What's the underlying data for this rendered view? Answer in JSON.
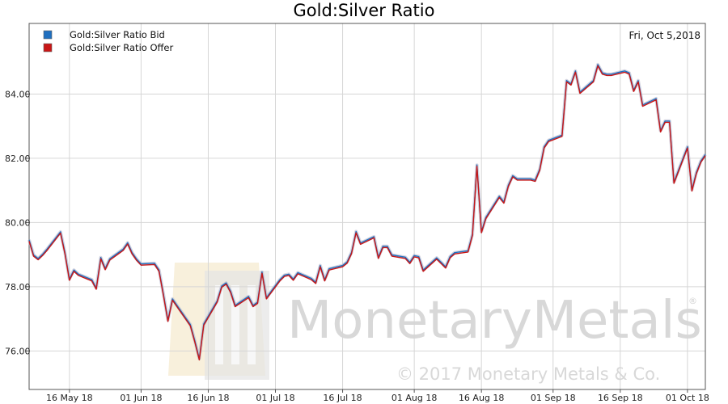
{
  "chart_data": {
    "type": "line",
    "title": "Gold:Silver Ratio",
    "date_label": "Fri, Oct 5,2018",
    "xlabel": "",
    "ylabel": "",
    "x_range": [
      "2018-05-07",
      "2018-10-05"
    ],
    "ylim": [
      74.8,
      86.2
    ],
    "y_ticks": [
      "76.00",
      "78.00",
      "80.00",
      "82.00",
      "84.00"
    ],
    "x_ticks": [
      {
        "date": "2018-05-16",
        "label": "16 May 18"
      },
      {
        "date": "2018-06-01",
        "label": "01 Jun 18"
      },
      {
        "date": "2018-06-16",
        "label": "16 Jun 18"
      },
      {
        "date": "2018-07-01",
        "label": "01 Jul 18"
      },
      {
        "date": "2018-07-16",
        "label": "16 Jul 18"
      },
      {
        "date": "2018-08-01",
        "label": "01 Aug 18"
      },
      {
        "date": "2018-08-16",
        "label": "16 Aug 18"
      },
      {
        "date": "2018-09-01",
        "label": "01 Sep 18"
      },
      {
        "date": "2018-09-16",
        "label": "16 Sep 18"
      },
      {
        "date": "2018-10-01",
        "label": "01 Oct 18"
      }
    ],
    "grid": true,
    "legend_position": "top-left",
    "series": [
      {
        "name": "Gold:Silver Ratio Bid",
        "color": "#1f6fbf",
        "points": [
          [
            "2018-05-07",
            79.42
          ],
          [
            "2018-05-08",
            78.95
          ],
          [
            "2018-05-09",
            78.84
          ],
          [
            "2018-05-10",
            78.97
          ],
          [
            "2018-05-11",
            79.13
          ],
          [
            "2018-05-14",
            79.67
          ],
          [
            "2018-05-15",
            79.02
          ],
          [
            "2018-05-16",
            78.2
          ],
          [
            "2018-05-17",
            78.48
          ],
          [
            "2018-05-18",
            78.35
          ],
          [
            "2018-05-21",
            78.18
          ],
          [
            "2018-05-22",
            77.92
          ],
          [
            "2018-05-23",
            78.87
          ],
          [
            "2018-05-24",
            78.53
          ],
          [
            "2018-05-25",
            78.83
          ],
          [
            "2018-05-28",
            79.13
          ],
          [
            "2018-05-29",
            79.33
          ],
          [
            "2018-05-30",
            79.02
          ],
          [
            "2018-05-31",
            78.82
          ],
          [
            "2018-06-01",
            78.67
          ],
          [
            "2018-06-04",
            78.69
          ],
          [
            "2018-06-05",
            78.48
          ],
          [
            "2018-06-06",
            77.72
          ],
          [
            "2018-06-07",
            76.92
          ],
          [
            "2018-06-08",
            77.58
          ],
          [
            "2018-06-11",
            76.98
          ],
          [
            "2018-06-12",
            76.78
          ],
          [
            "2018-06-13",
            76.28
          ],
          [
            "2018-06-14",
            75.72
          ],
          [
            "2018-06-15",
            76.8
          ],
          [
            "2018-06-18",
            77.52
          ],
          [
            "2018-06-19",
            77.98
          ],
          [
            "2018-06-20",
            78.08
          ],
          [
            "2018-06-21",
            77.82
          ],
          [
            "2018-06-22",
            77.38
          ],
          [
            "2018-06-25",
            77.66
          ],
          [
            "2018-06-26",
            77.38
          ],
          [
            "2018-06-27",
            77.48
          ],
          [
            "2018-06-28",
            78.42
          ],
          [
            "2018-06-29",
            77.62
          ],
          [
            "2018-07-02",
            78.18
          ],
          [
            "2018-07-03",
            78.32
          ],
          [
            "2018-07-04",
            78.35
          ],
          [
            "2018-07-05",
            78.2
          ],
          [
            "2018-07-06",
            78.4
          ],
          [
            "2018-07-09",
            78.22
          ],
          [
            "2018-07-10",
            78.1
          ],
          [
            "2018-07-11",
            78.62
          ],
          [
            "2018-07-12",
            78.18
          ],
          [
            "2018-07-13",
            78.52
          ],
          [
            "2018-07-16",
            78.62
          ],
          [
            "2018-07-17",
            78.73
          ],
          [
            "2018-07-18",
            79.03
          ],
          [
            "2018-07-19",
            79.68
          ],
          [
            "2018-07-20",
            79.32
          ],
          [
            "2018-07-23",
            79.52
          ],
          [
            "2018-07-24",
            78.88
          ],
          [
            "2018-07-25",
            79.22
          ],
          [
            "2018-07-26",
            79.22
          ],
          [
            "2018-07-27",
            78.95
          ],
          [
            "2018-07-30",
            78.88
          ],
          [
            "2018-07-31",
            78.72
          ],
          [
            "2018-08-01",
            78.93
          ],
          [
            "2018-08-02",
            78.9
          ],
          [
            "2018-08-03",
            78.48
          ],
          [
            "2018-08-06",
            78.86
          ],
          [
            "2018-08-07",
            78.72
          ],
          [
            "2018-08-08",
            78.58
          ],
          [
            "2018-08-09",
            78.9
          ],
          [
            "2018-08-10",
            79.02
          ],
          [
            "2018-08-13",
            79.08
          ],
          [
            "2018-08-14",
            79.6
          ],
          [
            "2018-08-15",
            81.75
          ],
          [
            "2018-08-16",
            79.68
          ],
          [
            "2018-08-17",
            80.12
          ],
          [
            "2018-08-20",
            80.78
          ],
          [
            "2018-08-21",
            80.6
          ],
          [
            "2018-08-22",
            81.12
          ],
          [
            "2018-08-23",
            81.42
          ],
          [
            "2018-08-24",
            81.32
          ],
          [
            "2018-08-27",
            81.32
          ],
          [
            "2018-08-28",
            81.28
          ],
          [
            "2018-08-29",
            81.62
          ],
          [
            "2018-08-30",
            82.32
          ],
          [
            "2018-08-31",
            82.52
          ],
          [
            "2018-09-03",
            82.68
          ],
          [
            "2018-09-04",
            84.38
          ],
          [
            "2018-09-05",
            84.28
          ],
          [
            "2018-09-06",
            84.68
          ],
          [
            "2018-09-07",
            84.02
          ],
          [
            "2018-09-10",
            84.38
          ],
          [
            "2018-09-11",
            84.88
          ],
          [
            "2018-09-12",
            84.62
          ],
          [
            "2018-09-13",
            84.58
          ],
          [
            "2018-09-14",
            84.58
          ],
          [
            "2018-09-17",
            84.68
          ],
          [
            "2018-09-18",
            84.62
          ],
          [
            "2018-09-19",
            84.08
          ],
          [
            "2018-09-20",
            84.38
          ],
          [
            "2018-09-21",
            83.62
          ],
          [
            "2018-09-24",
            83.82
          ],
          [
            "2018-09-25",
            82.82
          ],
          [
            "2018-09-26",
            83.12
          ],
          [
            "2018-09-27",
            83.12
          ],
          [
            "2018-09-28",
            81.22
          ],
          [
            "2018-10-01",
            82.32
          ],
          [
            "2018-10-02",
            80.98
          ],
          [
            "2018-10-03",
            81.52
          ],
          [
            "2018-10-04",
            81.88
          ],
          [
            "2018-10-05",
            82.08
          ]
        ]
      },
      {
        "name": "Gold:Silver Ratio Offer",
        "color": "#c81616",
        "points": [
          [
            "2018-05-07",
            79.42
          ],
          [
            "2018-05-08",
            78.95
          ],
          [
            "2018-05-09",
            78.84
          ],
          [
            "2018-05-10",
            78.97
          ],
          [
            "2018-05-11",
            79.13
          ],
          [
            "2018-05-14",
            79.67
          ],
          [
            "2018-05-15",
            79.02
          ],
          [
            "2018-05-16",
            78.2
          ],
          [
            "2018-05-17",
            78.48
          ],
          [
            "2018-05-18",
            78.35
          ],
          [
            "2018-05-21",
            78.18
          ],
          [
            "2018-05-22",
            77.92
          ],
          [
            "2018-05-23",
            78.87
          ],
          [
            "2018-05-24",
            78.53
          ],
          [
            "2018-05-25",
            78.83
          ],
          [
            "2018-05-28",
            79.13
          ],
          [
            "2018-05-29",
            79.33
          ],
          [
            "2018-05-30",
            79.02
          ],
          [
            "2018-05-31",
            78.82
          ],
          [
            "2018-06-01",
            78.67
          ],
          [
            "2018-06-04",
            78.69
          ],
          [
            "2018-06-05",
            78.48
          ],
          [
            "2018-06-06",
            77.72
          ],
          [
            "2018-06-07",
            76.92
          ],
          [
            "2018-06-08",
            77.58
          ],
          [
            "2018-06-11",
            76.98
          ],
          [
            "2018-06-12",
            76.78
          ],
          [
            "2018-06-13",
            76.28
          ],
          [
            "2018-06-14",
            75.72
          ],
          [
            "2018-06-15",
            76.8
          ],
          [
            "2018-06-18",
            77.52
          ],
          [
            "2018-06-19",
            77.98
          ],
          [
            "2018-06-20",
            78.08
          ],
          [
            "2018-06-21",
            77.82
          ],
          [
            "2018-06-22",
            77.38
          ],
          [
            "2018-06-25",
            77.66
          ],
          [
            "2018-06-26",
            77.38
          ],
          [
            "2018-06-27",
            77.48
          ],
          [
            "2018-06-28",
            78.42
          ],
          [
            "2018-06-29",
            77.62
          ],
          [
            "2018-07-02",
            78.18
          ],
          [
            "2018-07-03",
            78.32
          ],
          [
            "2018-07-04",
            78.35
          ],
          [
            "2018-07-05",
            78.2
          ],
          [
            "2018-07-06",
            78.4
          ],
          [
            "2018-07-09",
            78.22
          ],
          [
            "2018-07-10",
            78.1
          ],
          [
            "2018-07-11",
            78.62
          ],
          [
            "2018-07-12",
            78.18
          ],
          [
            "2018-07-13",
            78.52
          ],
          [
            "2018-07-16",
            78.62
          ],
          [
            "2018-07-17",
            78.73
          ],
          [
            "2018-07-18",
            79.03
          ],
          [
            "2018-07-19",
            79.68
          ],
          [
            "2018-07-20",
            79.32
          ],
          [
            "2018-07-23",
            79.52
          ],
          [
            "2018-07-24",
            78.88
          ],
          [
            "2018-07-25",
            79.22
          ],
          [
            "2018-07-26",
            79.22
          ],
          [
            "2018-07-27",
            78.95
          ],
          [
            "2018-07-30",
            78.88
          ],
          [
            "2018-07-31",
            78.72
          ],
          [
            "2018-08-01",
            78.93
          ],
          [
            "2018-08-02",
            78.9
          ],
          [
            "2018-08-03",
            78.48
          ],
          [
            "2018-08-06",
            78.86
          ],
          [
            "2018-08-07",
            78.72
          ],
          [
            "2018-08-08",
            78.58
          ],
          [
            "2018-08-09",
            78.9
          ],
          [
            "2018-08-10",
            79.02
          ],
          [
            "2018-08-13",
            79.08
          ],
          [
            "2018-08-14",
            79.6
          ],
          [
            "2018-08-15",
            81.75
          ],
          [
            "2018-08-16",
            79.68
          ],
          [
            "2018-08-17",
            80.12
          ],
          [
            "2018-08-20",
            80.78
          ],
          [
            "2018-08-21",
            80.6
          ],
          [
            "2018-08-22",
            81.12
          ],
          [
            "2018-08-23",
            81.42
          ],
          [
            "2018-08-24",
            81.32
          ],
          [
            "2018-08-27",
            81.32
          ],
          [
            "2018-08-28",
            81.28
          ],
          [
            "2018-08-29",
            81.62
          ],
          [
            "2018-08-30",
            82.32
          ],
          [
            "2018-08-31",
            82.52
          ],
          [
            "2018-09-03",
            82.68
          ],
          [
            "2018-09-04",
            84.38
          ],
          [
            "2018-09-05",
            84.28
          ],
          [
            "2018-09-06",
            84.68
          ],
          [
            "2018-09-07",
            84.02
          ],
          [
            "2018-09-10",
            84.38
          ],
          [
            "2018-09-11",
            84.88
          ],
          [
            "2018-09-12",
            84.62
          ],
          [
            "2018-09-13",
            84.58
          ],
          [
            "2018-09-14",
            84.58
          ],
          [
            "2018-09-17",
            84.68
          ],
          [
            "2018-09-18",
            84.62
          ],
          [
            "2018-09-19",
            84.08
          ],
          [
            "2018-09-20",
            84.38
          ],
          [
            "2018-09-21",
            83.62
          ],
          [
            "2018-09-24",
            83.82
          ],
          [
            "2018-09-25",
            82.82
          ],
          [
            "2018-09-26",
            83.12
          ],
          [
            "2018-09-27",
            83.12
          ],
          [
            "2018-09-28",
            81.22
          ],
          [
            "2018-10-01",
            82.32
          ],
          [
            "2018-10-02",
            80.98
          ],
          [
            "2018-10-03",
            81.52
          ],
          [
            "2018-10-04",
            81.88
          ],
          [
            "2018-10-05",
            82.08
          ]
        ]
      }
    ]
  },
  "watermark": {
    "brand": "MonetaryMetals",
    "registered": "®",
    "copyright": "© 2017 Monetary Metals & Co.",
    "logo_colors": [
      "#f3e6c4",
      "#e4e4e4"
    ]
  }
}
